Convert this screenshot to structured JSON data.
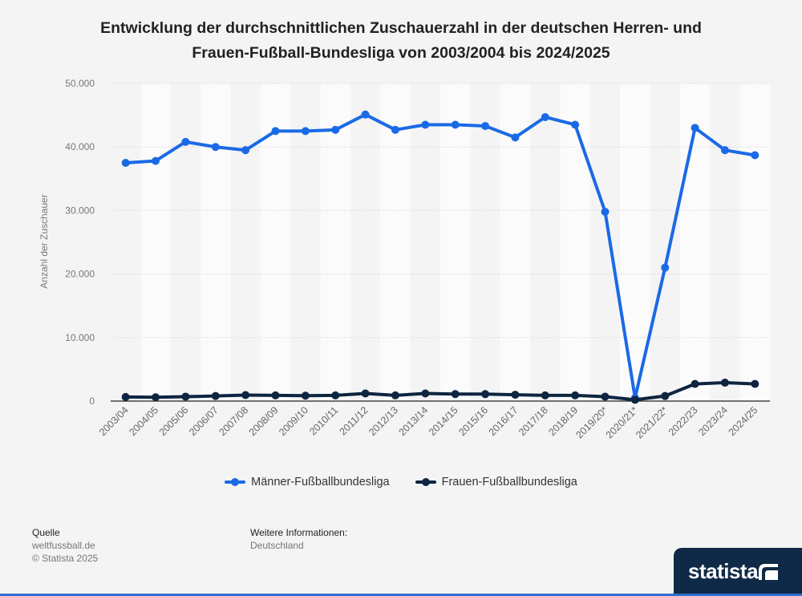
{
  "title_lines": [
    "Entwicklung der durchschnittlichen Zuschauerzahl in der deutschen Herren- und",
    "Frauen-Fußball-Bundesliga von 2003/2004 bis 2024/2025"
  ],
  "chart_data": {
    "type": "line",
    "categories": [
      "2003/04",
      "2004/05",
      "2005/06",
      "2006/07",
      "2007/08",
      "2008/09",
      "2009/10",
      "2010/11",
      "2011/12",
      "2012/13",
      "2013/14",
      "2014/15",
      "2015/16",
      "2016/17",
      "2017/18",
      "2018/19",
      "2019/20*",
      "2020/21*",
      "2021/22*",
      "2022/23",
      "2023/24",
      "2024/25"
    ],
    "series": [
      {
        "name": "Männer-Fußballbundesliga",
        "color": "#1a6ae6",
        "values": [
          37500,
          37800,
          40800,
          40000,
          39500,
          42500,
          42500,
          42700,
          45100,
          42700,
          43500,
          43500,
          43300,
          41500,
          44700,
          43500,
          29800,
          500,
          21000,
          43000,
          39500,
          38700
        ]
      },
      {
        "name": "Frauen-Fußballbundesliga",
        "color": "#0d2540",
        "values": [
          650,
          600,
          700,
          800,
          950,
          900,
          850,
          900,
          1200,
          900,
          1200,
          1100,
          1100,
          1000,
          900,
          900,
          700,
          200,
          800,
          2700,
          2900,
          2700
        ]
      }
    ],
    "ylabel": "Anzahl der Zuschauer",
    "ylim": [
      0,
      50000
    ],
    "yticks": [
      0,
      10000,
      20000,
      30000,
      40000,
      50000
    ],
    "ytick_labels": [
      "0",
      "10.000",
      "20.000",
      "30.000",
      "40.000",
      "50.000"
    ],
    "grid": true,
    "legend_position": "bottom"
  },
  "footer": {
    "source_heading": "Quelle",
    "source_lines": [
      "weltfussball.de",
      "© Statista 2025"
    ],
    "info_heading": "Weitere Informationen:",
    "info_value": "Deutschland"
  },
  "brand": {
    "name": "statista"
  }
}
